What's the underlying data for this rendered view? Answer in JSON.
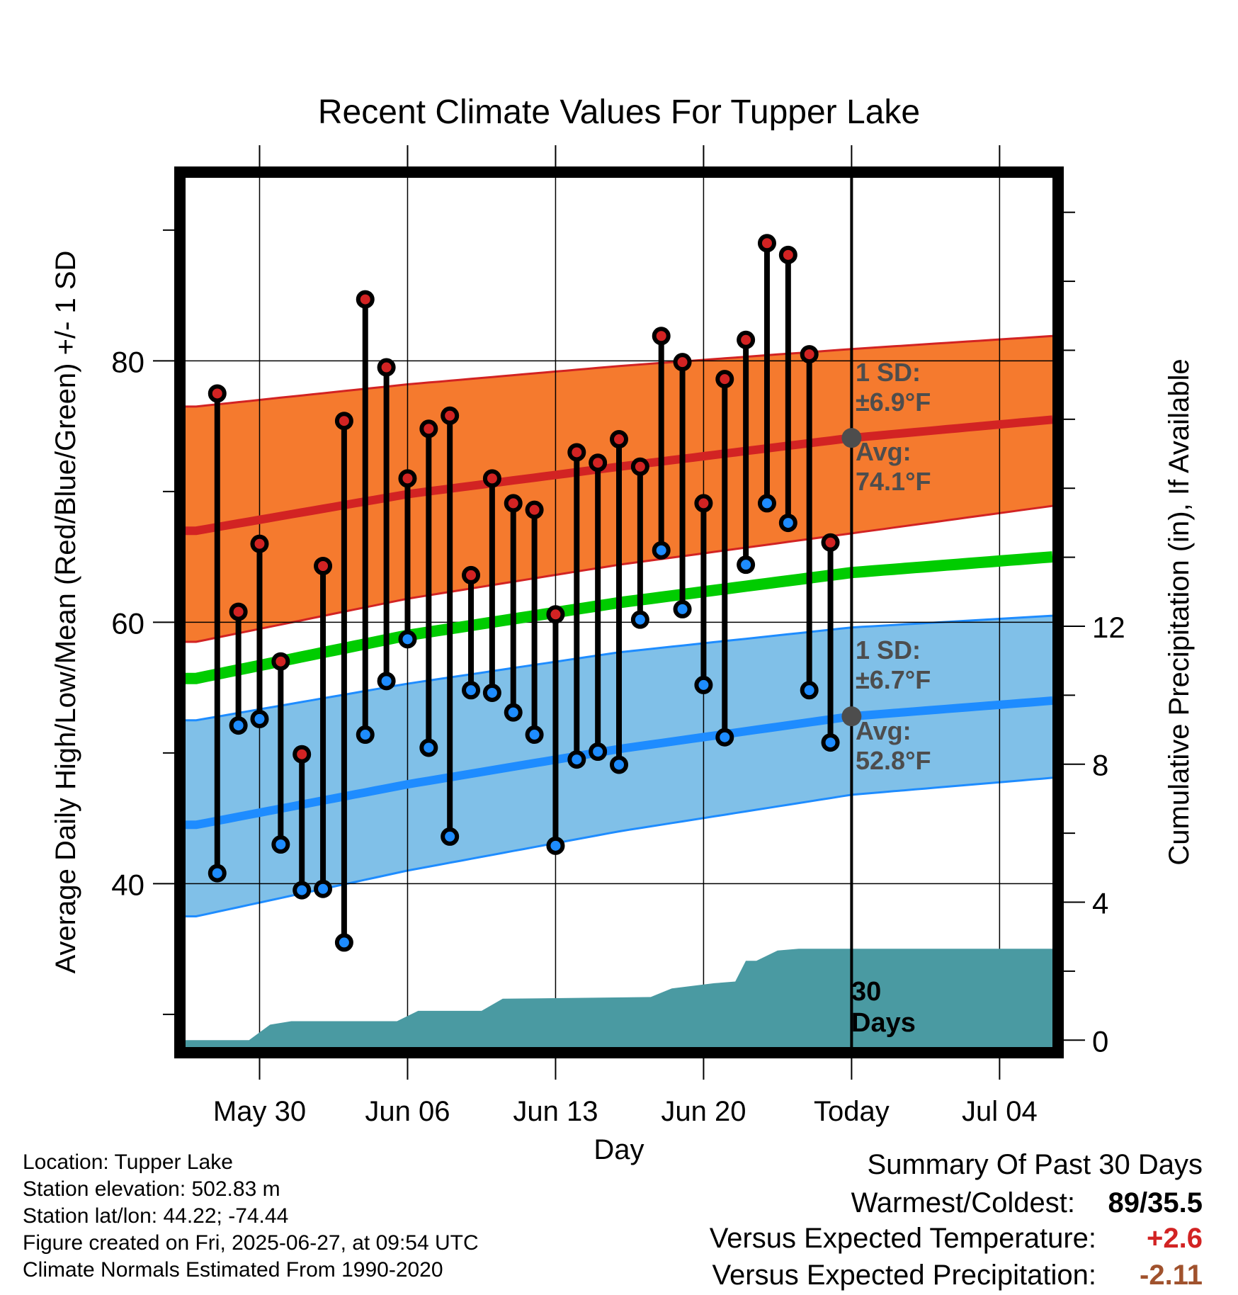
{
  "chart_data": {
    "type": "line",
    "title": "Recent Climate Values For Tupper Lake",
    "xlabel": "Day",
    "ylabel_left": "Average Daily High/Low/Mean (Red/Blue/Green) +/- 1 SD",
    "ylabel_right": "Cumulative Precipitation (in), If Available",
    "x_tick_labels": [
      "May 30",
      "Jun 06",
      "Jun 13",
      "Jun 20",
      "Today",
      "Jul 04"
    ],
    "x_range_days_from_today": [
      -31.5,
      9.5
    ],
    "y_left_ticks": [
      40,
      60,
      80
    ],
    "y_left_range": [
      27.5,
      94
    ],
    "y_right_ticks": [
      0,
      4,
      8,
      12
    ],
    "y_right_range": [
      -0.2,
      25.0
    ],
    "today_label_note": "Today",
    "days_label": [
      "30",
      "Days"
    ],
    "normals": {
      "x_days_from_today": [
        -31,
        -21,
        -11,
        0,
        9.5
      ],
      "avg_high": [
        67.0,
        69.8,
        71.9,
        74.1,
        75.5
      ],
      "avg_high_upper": [
        76.5,
        78.2,
        79.6,
        80.9,
        81.9
      ],
      "avg_high_lower": [
        58.5,
        61.8,
        64.4,
        66.8,
        68.9
      ],
      "avg_mean": [
        55.7,
        59.0,
        61.5,
        63.8,
        65.0
      ],
      "avg_low": [
        44.5,
        47.6,
        50.3,
        52.8,
        54.0
      ],
      "avg_low_upper": [
        52.5,
        55.3,
        57.7,
        59.6,
        60.5
      ],
      "avg_low_lower": [
        37.5,
        41.0,
        44.0,
        46.8,
        48.1
      ],
      "high_sd_label": [
        "1 SD:",
        "±6.9°F"
      ],
      "high_avg_label": [
        "Avg:",
        "74.1°F"
      ],
      "low_sd_label": [
        "1 SD:",
        "±6.7°F"
      ],
      "low_avg_label": [
        "Avg:",
        "52.8°F"
      ]
    },
    "series": [
      {
        "name": "High",
        "color": "#d22323",
        "values": [
          77.5,
          60.8,
          66.0,
          57.0,
          49.9,
          64.3,
          75.4,
          84.7,
          79.5,
          71.0,
          74.8,
          75.8,
          63.6,
          71.0,
          69.1,
          68.6,
          60.6,
          73.0,
          72.2,
          74.0,
          71.9,
          81.9,
          79.9,
          69.1,
          78.6,
          81.6,
          89.0,
          88.1,
          80.5,
          66.1
        ]
      },
      {
        "name": "Low",
        "color": "#1e8cff",
        "values": [
          40.8,
          52.1,
          52.6,
          43.0,
          39.5,
          39.6,
          35.5,
          51.4,
          55.5,
          58.7,
          50.4,
          43.6,
          54.8,
          54.6,
          53.1,
          51.4,
          42.9,
          49.5,
          50.1,
          49.1,
          60.2,
          65.5,
          61.0,
          55.2,
          51.2,
          64.4,
          69.1,
          67.6,
          54.8,
          50.8
        ]
      }
    ],
    "precip": {
      "x_days_from_today": [
        -31.5,
        -28.5,
        -27.5,
        -26.5,
        -21.5,
        -20.5,
        -17.5,
        -16.5,
        -9.5,
        -8.5,
        -6.5,
        -5.5,
        -5.0,
        -4.5,
        -3.5,
        -2.5,
        -1.5,
        9.5
      ],
      "cumulative": [
        0,
        0,
        0.45,
        0.55,
        0.55,
        0.85,
        0.85,
        1.2,
        1.25,
        1.5,
        1.65,
        1.7,
        2.3,
        2.3,
        2.6,
        2.65,
        2.65,
        2.65
      ]
    },
    "colors": {
      "high_band": "#f57a2e",
      "high_line": "#d22323",
      "mean_line": "#00cc00",
      "low_band": "#80c0e8",
      "low_line": "#1e8cff",
      "precip_fill": "#4a9aa2",
      "label_grey": "#4d4d4d"
    }
  },
  "info": {
    "location": "Location: Tupper Lake",
    "elevation": "Station elevation: 502.83 m",
    "latlon": "Station lat/lon: 44.22; -74.44",
    "created": "Figure created on Fri, 2025-06-27, at 09:54 UTC",
    "normals": "Climate Normals Estimated From 1990-2020"
  },
  "summary": {
    "title": "Summary Of Past 30 Days",
    "warm_label": "Warmest/Coldest:",
    "warm_value": "89/35.5",
    "temp_label": "Versus Expected Temperature:",
    "temp_value": "+2.6",
    "temp_color": "#d22323",
    "precip_label": "Versus Expected Precipitation:",
    "precip_value": "-2.11",
    "precip_color": "#a0522d"
  }
}
